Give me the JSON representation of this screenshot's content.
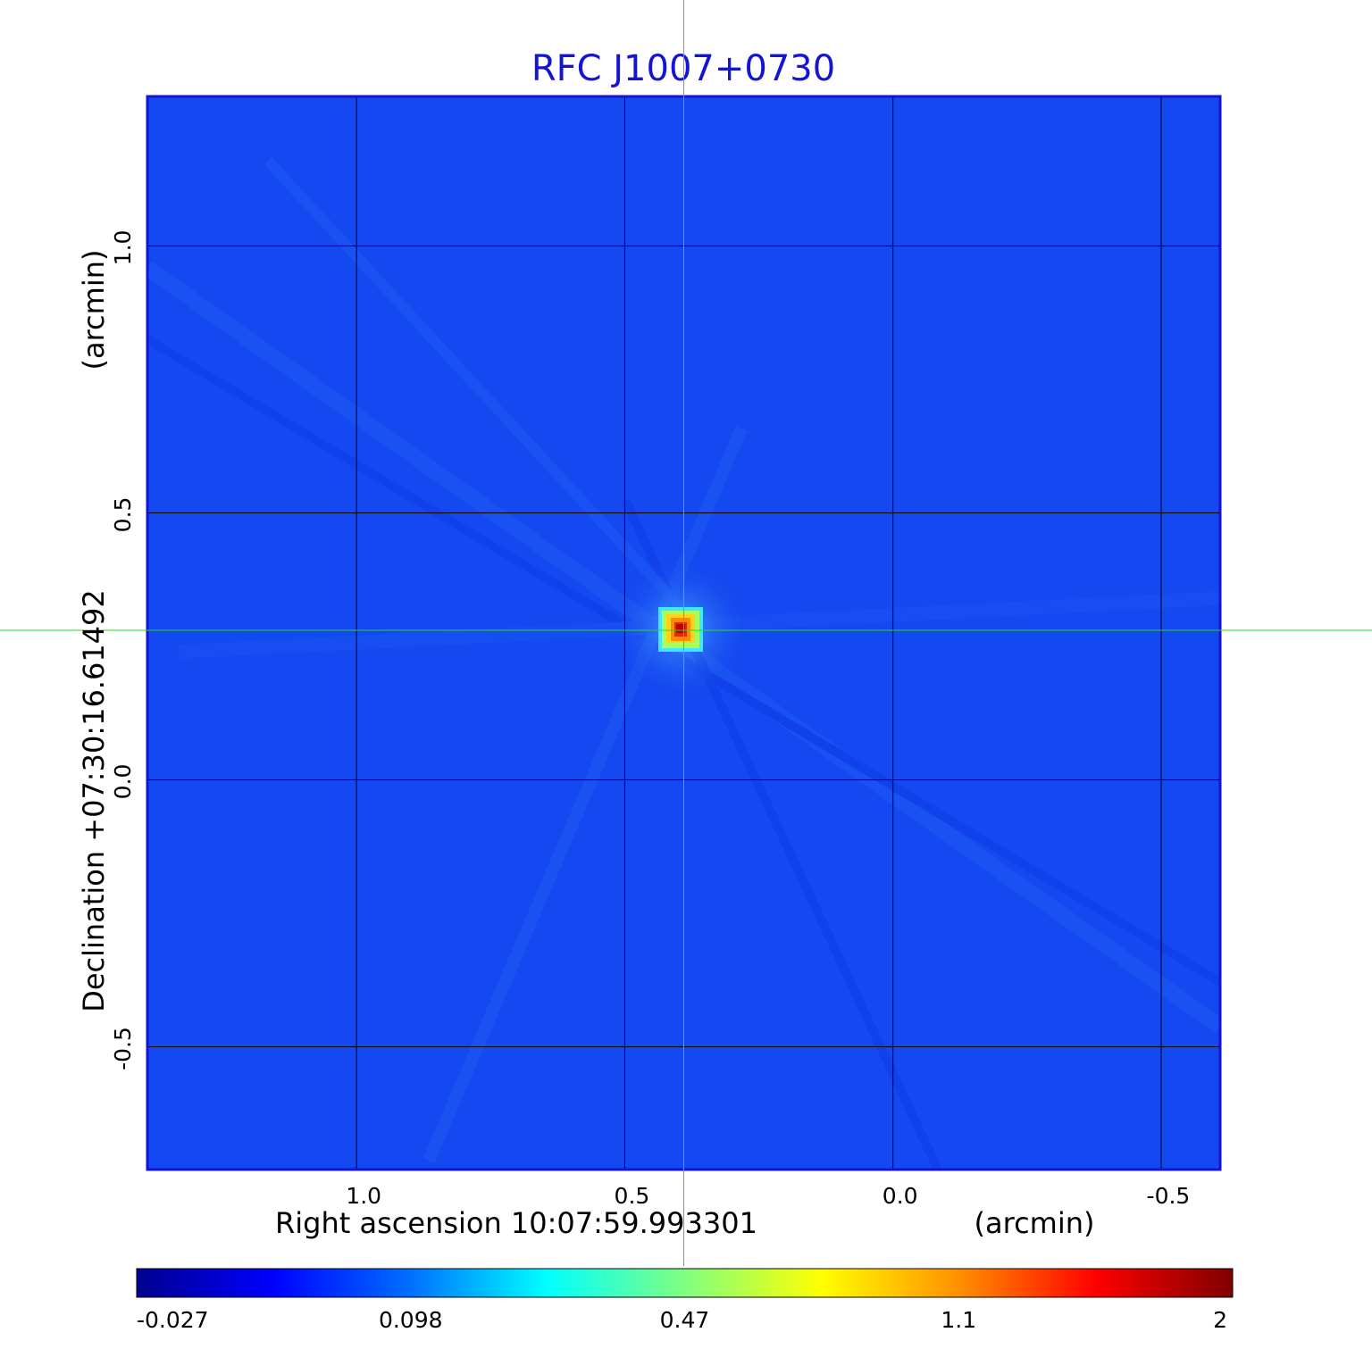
{
  "chart_data": {
    "type": "heatmap",
    "title": "RFC J1007+0730",
    "xlabel": "Right ascension  10:07:59.993301",
    "xunit": "(arcmin)",
    "ylabel": "Declination  +07:30:16.61492",
    "yunit": "(arcmin)",
    "x_axis_reversed": true,
    "xlim": [
      1.39,
      -0.61
    ],
    "ylim": [
      -0.73,
      1.28
    ],
    "x_ticks": [
      1.0,
      0.5,
      0.0,
      -0.5
    ],
    "x_tick_labels": [
      "1.0",
      "0.5",
      "0.0",
      "-0.5"
    ],
    "y_ticks": [
      1.0,
      0.5,
      0.0,
      -0.5
    ],
    "y_tick_labels": [
      "1.0",
      "0.5",
      "0.0",
      "-0.5"
    ],
    "grid": true,
    "crosshair": {
      "x": 0.39,
      "y": 0.28,
      "color": "#22dd22"
    },
    "peak": {
      "x": 0.39,
      "y": 0.28,
      "value": 2
    },
    "colormap": "jet",
    "colorbar": {
      "position": "bottom",
      "tick_values": [
        -0.027,
        0.098,
        0.47,
        1.1,
        2
      ],
      "tick_labels": [
        "-0.027",
        "0.098",
        "0.47",
        "1.1",
        "2"
      ],
      "scale": "nonlinear"
    }
  },
  "colors": {
    "title": "#1414d2",
    "background_field": "#1448f0",
    "grid": "#000000",
    "crosshair": "#22dd22"
  }
}
